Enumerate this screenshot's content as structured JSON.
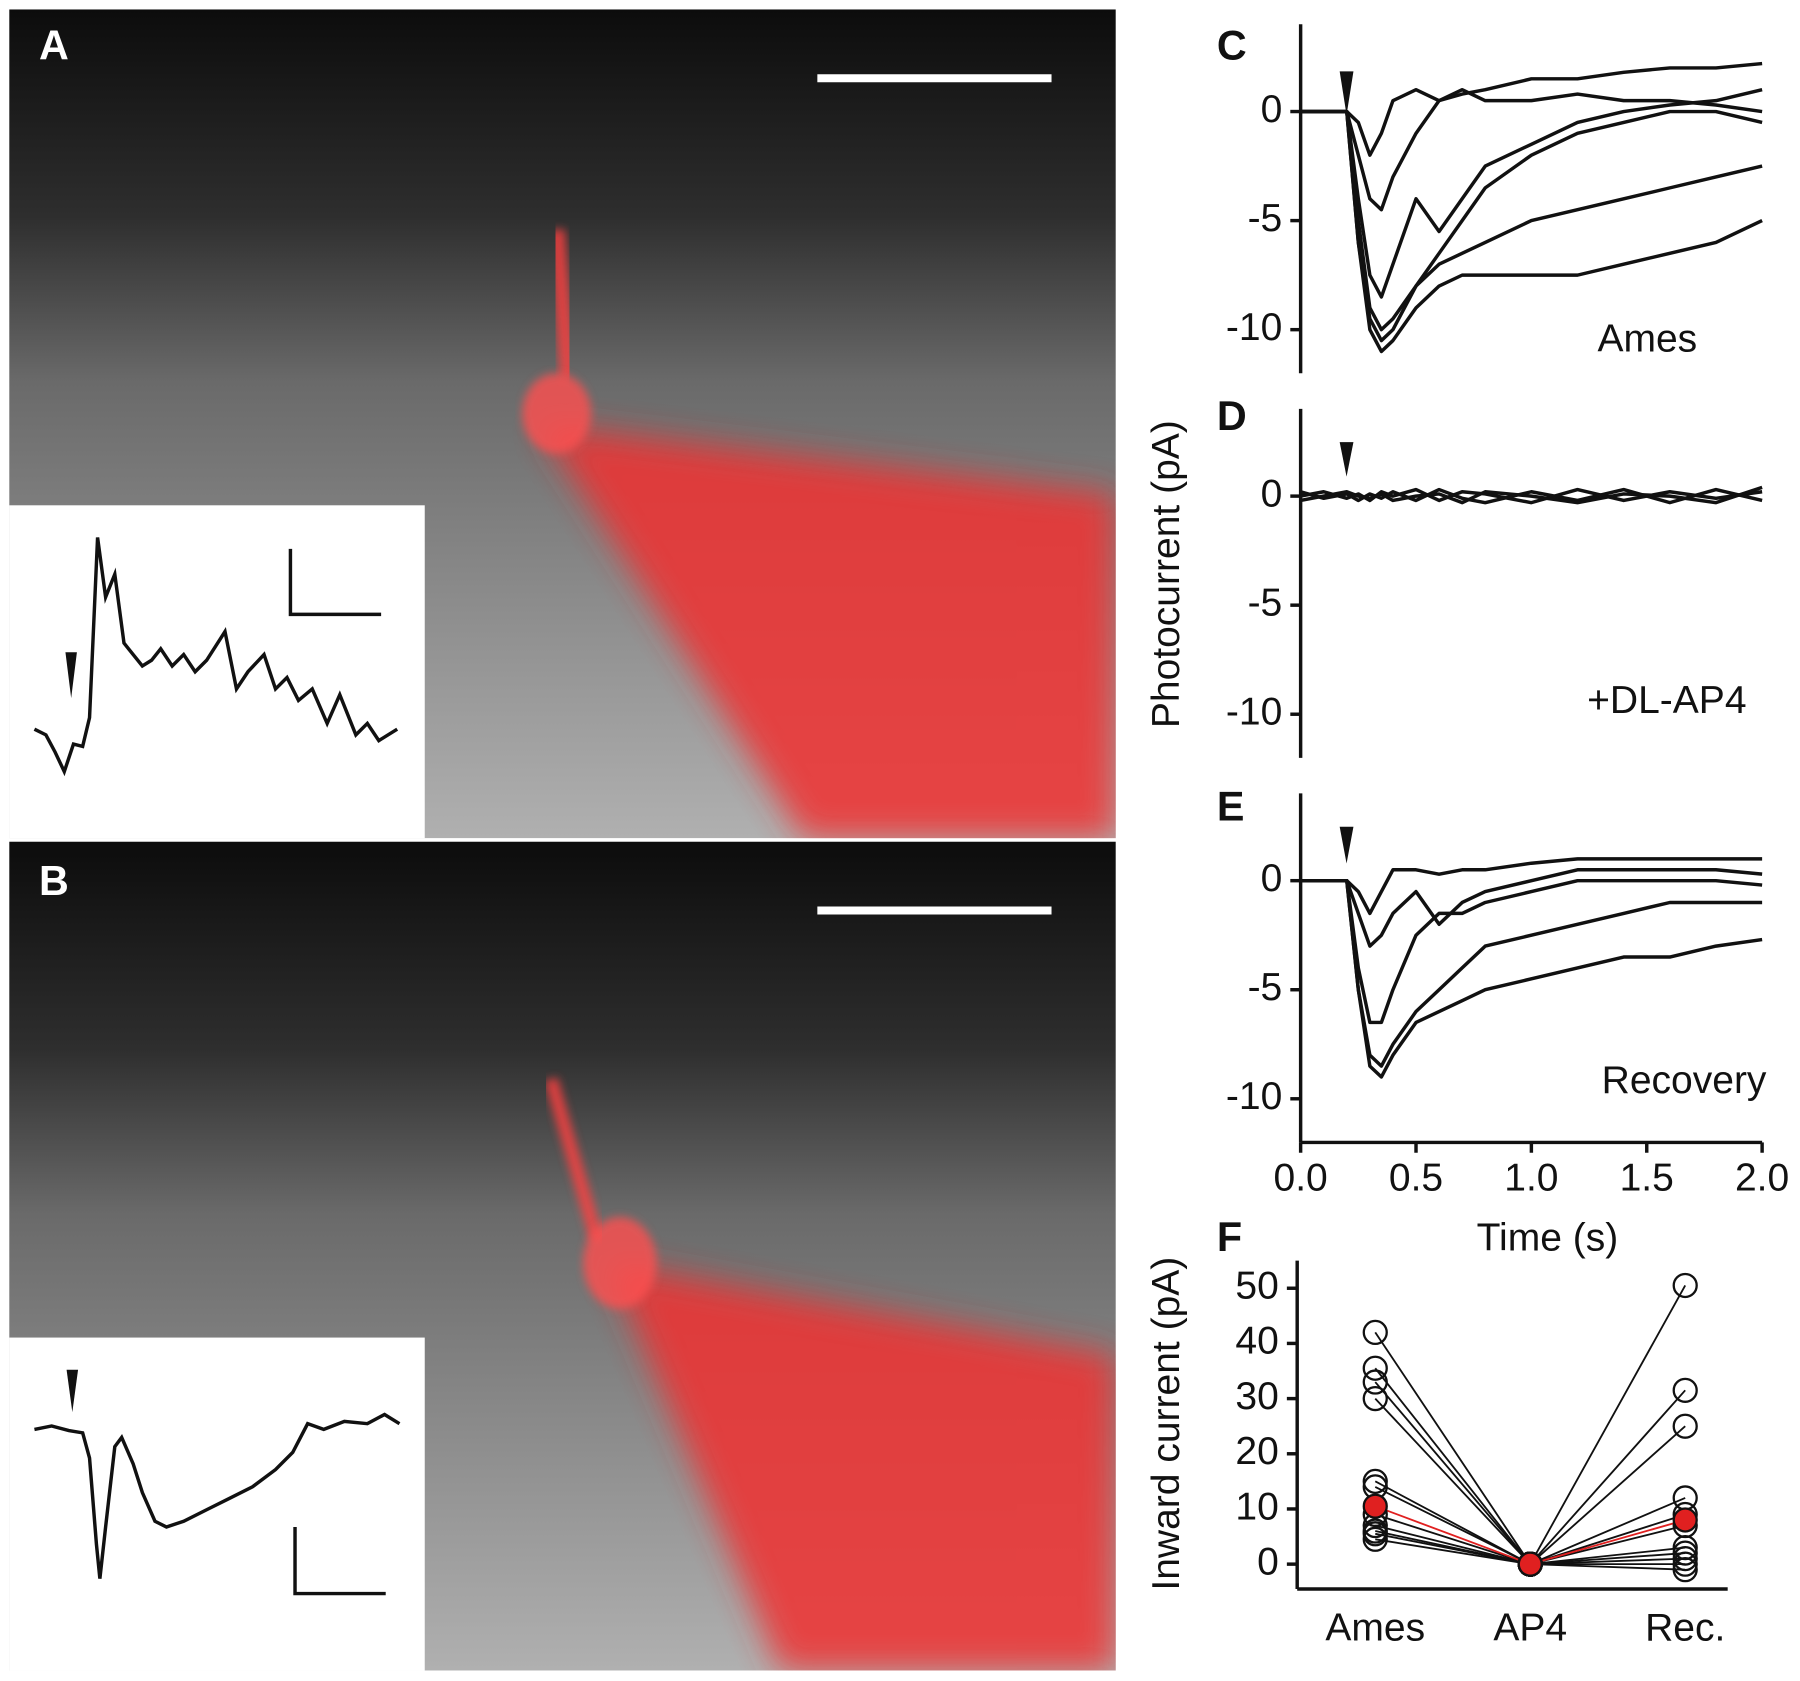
{
  "panel_labels": [
    "A",
    "B"
  ],
  "chart_data": [
    {
      "type": "line",
      "panel": "C",
      "annotation": "Ames",
      "color": "#111",
      "x": [
        0,
        0.1,
        0.2,
        0.25,
        0.3,
        0.35,
        0.4,
        0.5,
        0.6,
        0.7,
        0.8,
        1.0,
        1.2,
        1.4,
        1.6,
        1.8,
        2.0
      ],
      "xlim": [
        0,
        2
      ],
      "ylim": [
        -12,
        4
      ],
      "yticks": [
        0,
        -5,
        -10
      ],
      "series": [
        {
          "values": [
            0,
            0,
            0,
            -0.5,
            -2,
            -1,
            0.5,
            1,
            0.5,
            0.8,
            1,
            1.5,
            1.5,
            1.8,
            2,
            2,
            2.2
          ]
        },
        {
          "values": [
            0,
            0,
            0,
            -2,
            -4,
            -4.5,
            -3,
            -1,
            0.5,
            1,
            0.5,
            0.5,
            0.8,
            0.5,
            0.5,
            0.3,
            0
          ]
        },
        {
          "values": [
            0,
            0,
            0,
            -4,
            -7.5,
            -8.5,
            -7,
            -4,
            -5.5,
            -4,
            -2.5,
            -1.5,
            -0.5,
            0,
            0.3,
            0.5,
            1
          ]
        },
        {
          "values": [
            0,
            0,
            0,
            -6,
            -9.5,
            -10.5,
            -10,
            -8,
            -7,
            -6.5,
            -6,
            -5,
            -4.5,
            -4,
            -3.5,
            -3,
            -2.5
          ]
        },
        {
          "values": [
            0,
            0,
            0,
            -6,
            -10,
            -11,
            -10.5,
            -9,
            -8,
            -7.5,
            -7.5,
            -7.5,
            -7.5,
            -7,
            -6.5,
            -6,
            -5
          ]
        },
        {
          "values": [
            0,
            0,
            0,
            -5,
            -9,
            -10,
            -9.5,
            -8,
            -6.5,
            -5,
            -3.5,
            -2,
            -1,
            -0.5,
            0,
            0,
            -0.5
          ]
        }
      ]
    },
    {
      "type": "line",
      "panel": "D",
      "annotation": "+DL-AP4",
      "ylabel": "Photocurrent (pA)",
      "color": "#111",
      "x": [
        0,
        0.1,
        0.2,
        0.25,
        0.3,
        0.35,
        0.4,
        0.5,
        0.6,
        0.7,
        0.8,
        1.0,
        1.2,
        1.4,
        1.6,
        1.8,
        2.0
      ],
      "xlim": [
        0,
        2
      ],
      "ylim": [
        -12,
        4
      ],
      "yticks": [
        0,
        -5,
        -10
      ],
      "series": [
        {
          "values": [
            0,
            0.2,
            -0.1,
            0.1,
            -0.2,
            0.2,
            0,
            0.3,
            -0.2,
            0.2,
            0.1,
            -0.3,
            0.3,
            -0.2,
            0.2,
            -0.1,
            0.2
          ]
        },
        {
          "values": [
            0.2,
            -0.1,
            0.1,
            -0.2,
            0.1,
            -0.1,
            0.2,
            -0.2,
            0.3,
            -0.1,
            -0.3,
            0.2,
            -0.2,
            0.3,
            -0.3,
            0.3,
            -0.2
          ]
        },
        {
          "values": [
            -0.2,
            0,
            0.2,
            0,
            -0.1,
            0.1,
            -0.2,
            0,
            0.1,
            -0.3,
            0.2,
            0,
            -0.3,
            0.1,
            0,
            -0.3,
            0.4
          ]
        }
      ]
    },
    {
      "type": "line",
      "panel": "E",
      "annotation": "Recovery",
      "xlabel": "Time (s)",
      "color": "#111",
      "x": [
        0,
        0.1,
        0.2,
        0.25,
        0.3,
        0.35,
        0.4,
        0.5,
        0.6,
        0.7,
        0.8,
        1.0,
        1.2,
        1.4,
        1.6,
        1.8,
        2.0
      ],
      "xlim": [
        0,
        2
      ],
      "ylim": [
        -12,
        4
      ],
      "yticks": [
        0,
        -5,
        -10
      ],
      "xticks": [
        {
          "value": 0,
          "label": "0.0"
        },
        {
          "value": 0.5,
          "label": "0.5"
        },
        {
          "value": 1,
          "label": "1.0"
        },
        {
          "value": 1.5,
          "label": "1.5"
        },
        {
          "value": 2,
          "label": "2.0"
        }
      ],
      "series": [
        {
          "values": [
            0,
            0,
            0,
            -0.5,
            -1.5,
            -0.5,
            0.5,
            0.5,
            0.3,
            0.5,
            0.5,
            0.8,
            1,
            1,
            1,
            1,
            1
          ]
        },
        {
          "values": [
            0,
            0,
            0,
            -1.5,
            -3,
            -2.5,
            -1.5,
            -0.5,
            -2,
            -1,
            -0.5,
            0,
            0.5,
            0.5,
            0.5,
            0.5,
            0.3
          ]
        },
        {
          "values": [
            0,
            0,
            0,
            -4,
            -6.5,
            -6.5,
            -5,
            -2.5,
            -1.5,
            -1.5,
            -1,
            -0.5,
            0,
            0,
            0,
            0,
            -0.2
          ]
        },
        {
          "values": [
            0,
            0,
            0,
            -5,
            -8,
            -8.5,
            -7.5,
            -6,
            -5,
            -4,
            -3,
            -2.5,
            -2,
            -1.5,
            -1,
            -1,
            -1
          ]
        },
        {
          "values": [
            0,
            0,
            0,
            -5,
            -8.5,
            -9,
            -8,
            -6.5,
            -6,
            -5.5,
            -5,
            -4.5,
            -4,
            -3.5,
            -3.5,
            -3,
            -2.7
          ]
        }
      ]
    },
    {
      "type": "line",
      "panel": "F",
      "ylabel": "Inward current (pA)",
      "markers": true,
      "categories": [
        "Ames",
        "AP4",
        "Rec."
      ],
      "ylim": [
        -4.5,
        55
      ],
      "yticks": [
        0,
        10,
        20,
        30,
        40,
        50
      ],
      "series": [
        {
          "color": "#111",
          "values": [
            42,
            0,
            50.5
          ]
        },
        {
          "color": "#111",
          "values": [
            35.5,
            0,
            31.5
          ]
        },
        {
          "color": "#111",
          "values": [
            33,
            0,
            25
          ]
        },
        {
          "color": "#111",
          "values": [
            30,
            0,
            12
          ]
        },
        {
          "color": "#111",
          "values": [
            15,
            0,
            9
          ]
        },
        {
          "color": "#111",
          "values": [
            14,
            0,
            7
          ]
        },
        {
          "color": "#111",
          "values": [
            9,
            0,
            3
          ]
        },
        {
          "color": "#111",
          "values": [
            7,
            0,
            2
          ]
        },
        {
          "color": "#111",
          "values": [
            5.5,
            0,
            1
          ]
        },
        {
          "color": "#111",
          "values": [
            4.5,
            0,
            0
          ]
        },
        {
          "color": "#111",
          "values": [
            6,
            0,
            -1
          ]
        },
        {
          "color": "#e02020",
          "values": [
            10.5,
            0,
            8
          ]
        }
      ]
    }
  ]
}
